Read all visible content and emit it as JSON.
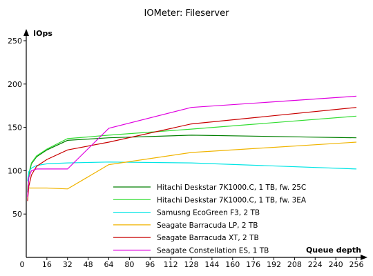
{
  "chart_data": {
    "type": "line",
    "title": "IOMeter: Fileserver",
    "xlabel": "Queue depth",
    "ylabel": "IOps",
    "xlim": [
      0,
      256
    ],
    "ylim": [
      0,
      250
    ],
    "xticks": [
      0,
      16,
      32,
      48,
      64,
      80,
      96,
      112,
      128,
      144,
      160,
      176,
      192,
      208,
      224,
      240,
      256
    ],
    "yticks": [
      0,
      50,
      100,
      150,
      200,
      250
    ],
    "grid": false,
    "legend_position": "bottom-center",
    "series": [
      {
        "name": "Hitachi Deskstar 7K1000.C, 1 TB, fw. 25C",
        "color": "#007f00",
        "x": [
          1,
          2,
          4,
          8,
          16,
          32,
          64,
          128,
          256
        ],
        "y": [
          75,
          95,
          108,
          116,
          124,
          135,
          138,
          141,
          138
        ]
      },
      {
        "name": "Hitachi Deskstar 7K1000.C, 1 TB, fw. 3EA",
        "color": "#33dd33",
        "x": [
          1,
          2,
          4,
          8,
          16,
          32,
          64,
          128,
          256
        ],
        "y": [
          78,
          97,
          109,
          117,
          125,
          137,
          141,
          148,
          163
        ]
      },
      {
        "name": "Samusng EcoGreen F3, 2 TB",
        "color": "#00e5e5",
        "x": [
          1,
          2,
          4,
          8,
          16,
          32,
          64,
          128,
          256
        ],
        "y": [
          88,
          99,
          103,
          106,
          108,
          109,
          110,
          109,
          102
        ]
      },
      {
        "name": "Seagate Barracuda LP, 2 TB",
        "color": "#f0b400",
        "x": [
          1,
          2,
          4,
          8,
          16,
          32,
          64,
          128,
          256
        ],
        "y": [
          80,
          80,
          80,
          80,
          80,
          79,
          107,
          121,
          133
        ]
      },
      {
        "name": "Seagate Barracuda XT, 2 TB",
        "color": "#c80000",
        "x": [
          1,
          2,
          4,
          8,
          16,
          32,
          64,
          128,
          256
        ],
        "y": [
          65,
          82,
          95,
          105,
          113,
          124,
          133,
          154,
          173
        ]
      },
      {
        "name": "Seagate Constellation ES, 1 TB",
        "color": "#e000e0",
        "x": [
          1,
          2,
          4,
          8,
          16,
          32,
          64,
          128,
          256
        ],
        "y": [
          70,
          92,
          100,
          102,
          102,
          102,
          149,
          173,
          186
        ]
      }
    ]
  }
}
